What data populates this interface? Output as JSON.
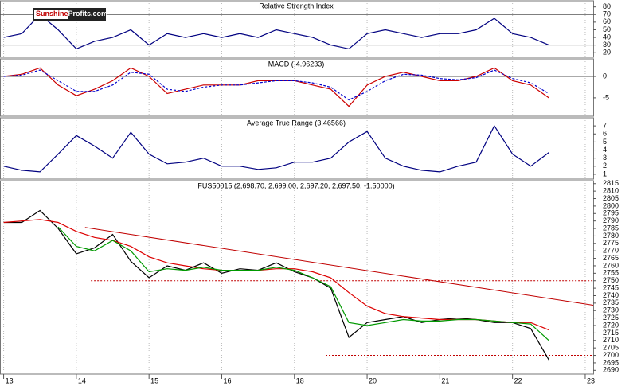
{
  "brand": [
    "Sunshine",
    "Profits.com"
  ],
  "chart_data": [
    {
      "type": "line",
      "title": "Relative Strength Index",
      "x": [
        0,
        0.25,
        0.5,
        0.75,
        1,
        1.25,
        1.5,
        1.75,
        2,
        2.25,
        2.5,
        2.75,
        3,
        3.25,
        3.5,
        3.75,
        4,
        4.25,
        4.5,
        4.75,
        5,
        5.25,
        5.5,
        5.75,
        6,
        6.25,
        6.5,
        6.75,
        7,
        7.25,
        7.5
      ],
      "series": [
        {
          "color": "#000080",
          "values": [
            40,
            45,
            70,
            50,
            25,
            35,
            40,
            50,
            30,
            45,
            40,
            45,
            40,
            45,
            40,
            50,
            45,
            40,
            30,
            25,
            45,
            50,
            45,
            40,
            45,
            45,
            50,
            65,
            45,
            40,
            30
          ]
        }
      ],
      "xlim": [
        -0.05,
        8.11
      ],
      "ylim": [
        14,
        88
      ],
      "yticks": [
        20,
        30,
        40,
        50,
        60,
        70,
        80
      ],
      "levels": [
        70,
        30
      ]
    },
    {
      "type": "line",
      "title": "MACD (-4.96233)",
      "x": [
        0,
        0.25,
        0.5,
        0.75,
        1,
        1.25,
        1.5,
        1.75,
        2,
        2.25,
        2.5,
        2.75,
        3,
        3.25,
        3.5,
        3.75,
        4,
        4.25,
        4.5,
        4.75,
        5,
        5.25,
        5.5,
        5.75,
        6,
        6.25,
        6.5,
        6.75,
        7,
        7.25,
        7.5
      ],
      "series": [
        {
          "color": "#cc0000",
          "values": [
            0,
            0.5,
            2,
            -2,
            -4.5,
            -3,
            -1,
            2,
            0,
            -4,
            -3,
            -2,
            -2,
            -2,
            -1,
            -1,
            -1,
            -2,
            -3,
            -7,
            -2,
            0,
            1,
            0,
            -1,
            -1,
            0,
            2,
            -1,
            -2,
            -5
          ]
        },
        {
          "color": "#0000cc",
          "dash": true,
          "values": [
            0,
            0.3,
            1.5,
            -1,
            -3.5,
            -3.5,
            -2,
            1,
            0.5,
            -3,
            -3.5,
            -2.5,
            -2,
            -2,
            -1.5,
            -1,
            -1,
            -1.5,
            -2.5,
            -5.5,
            -3.5,
            -1,
            0.5,
            0.3,
            -0.5,
            -0.8,
            -0.3,
            1.5,
            -0.5,
            -1.5,
            -4
          ]
        }
      ],
      "xlim": [
        -0.05,
        8.11
      ],
      "ylim": [
        -9.3,
        4.1
      ],
      "yticks": [
        -5,
        0
      ],
      "levels": [
        0
      ]
    },
    {
      "type": "line",
      "title": "Average True Range (3.46566)",
      "x": [
        0,
        0.25,
        0.5,
        0.75,
        1,
        1.25,
        1.5,
        1.75,
        2,
        2.25,
        2.5,
        2.75,
        3,
        3.25,
        3.5,
        3.75,
        4,
        4.25,
        4.5,
        4.75,
        5,
        5.25,
        5.5,
        5.75,
        6,
        6.25,
        6.5,
        6.75,
        7,
        7.25,
        7.5
      ],
      "series": [
        {
          "color": "#000080",
          "values": [
            2,
            1.5,
            1.3,
            3.5,
            5.8,
            4.5,
            3,
            6.2,
            3.5,
            2.3,
            2.5,
            3,
            2,
            2,
            1.6,
            1.8,
            2.5,
            2.5,
            3,
            5,
            6.3,
            3,
            2,
            1.5,
            1.3,
            2,
            2.5,
            7,
            3.5,
            2,
            3.7
          ]
        }
      ],
      "xlim": [
        -0.05,
        8.11
      ],
      "ylim": [
        0.4,
        8
      ],
      "yticks": [
        1,
        2,
        3,
        4,
        5,
        6,
        7
      ]
    },
    {
      "type": "line",
      "title": "FUS50015 (2,698.70, 2,699.00, 2,697.20, 2,697.50, -1.50000)",
      "x": [
        0,
        0.25,
        0.5,
        0.75,
        1,
        1.25,
        1.5,
        1.75,
        2,
        2.25,
        2.5,
        2.75,
        3,
        3.25,
        3.5,
        3.75,
        4,
        4.25,
        4.5,
        4.75,
        5,
        5.25,
        5.5,
        5.75,
        6,
        6.25,
        6.5,
        6.75,
        7,
        7.25,
        7.5
      ],
      "series": [
        {
          "color": "#000000",
          "values": [
            2789,
            2789,
            2797,
            2785,
            2768,
            2772,
            2781,
            2763,
            2752,
            2760,
            2757,
            2762,
            2755,
            2758,
            2757,
            2762,
            2756,
            2752,
            2745,
            2712,
            2722,
            2724,
            2726,
            2722,
            2724,
            2725,
            2724,
            2722,
            2722,
            2718,
            2697
          ]
        },
        {
          "color": "#dd0000",
          "values": [
            2789,
            2790,
            2791,
            2789,
            2783,
            2779,
            2777,
            2773,
            2766,
            2762,
            2760,
            2758,
            2757,
            2757,
            2757,
            2758,
            2758,
            2756,
            2752,
            2742,
            2733,
            2728,
            2726,
            2725,
            2724,
            2724,
            2724,
            2723,
            2722,
            2722,
            2717
          ]
        },
        {
          "color": "#009900",
          "values": [
            null,
            null,
            null,
            2786,
            2773,
            2770,
            2777,
            2770,
            2756,
            2758,
            2757,
            2759,
            2757,
            2757,
            2757,
            2759,
            2757,
            2752,
            2746,
            2722,
            2720,
            2722,
            2724,
            2723,
            2723,
            2724,
            2724,
            2723,
            2722,
            2721,
            2710
          ]
        }
      ],
      "lines": [
        {
          "color": "#c00000",
          "x": [
            1.12,
            8.11
          ],
          "y": [
            2785.7,
            2733.6
          ]
        },
        {
          "color": "#c00000",
          "dash": true,
          "x": [
            1.2,
            8.11
          ],
          "y": [
            2750,
            2750
          ]
        },
        {
          "color": "#c00000",
          "dash": true,
          "x": [
            4.43,
            8.11
          ],
          "y": [
            2700,
            2700
          ]
        }
      ],
      "xlim": [
        -0.05,
        8.11
      ],
      "ylim": [
        2687.5,
        2817
      ],
      "xticks": [
        {
          "value": 0,
          "label": "13"
        },
        {
          "value": 1,
          "label": "14"
        },
        {
          "value": 2,
          "label": "15"
        },
        {
          "value": 3,
          "label": "16"
        },
        {
          "value": 4,
          "label": "18"
        },
        {
          "value": 5,
          "label": "20"
        },
        {
          "value": 6,
          "label": "21"
        },
        {
          "value": 7,
          "label": "22"
        },
        {
          "value": 8,
          "label": "23"
        }
      ],
      "yticks": [
        2690,
        2695,
        2700,
        2705,
        2710,
        2715,
        2720,
        2725,
        2730,
        2735,
        2740,
        2745,
        2750,
        2755,
        2760,
        2765,
        2770,
        2775,
        2780,
        2785,
        2790,
        2795,
        2800,
        2805,
        2810,
        2815
      ]
    }
  ]
}
